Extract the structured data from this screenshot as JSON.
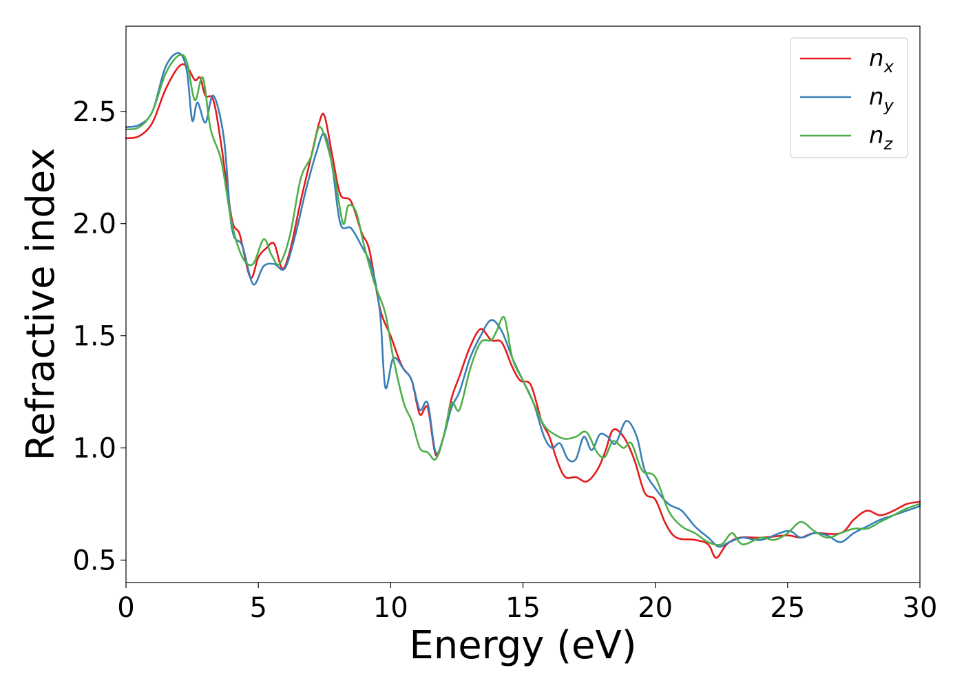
{
  "chart_data": {
    "type": "line",
    "title": "",
    "xlabel": "Energy (eV)",
    "ylabel": "Refractive index",
    "xlim": [
      0,
      30
    ],
    "ylim": [
      0.4,
      2.88
    ],
    "xticks": [
      0,
      5,
      10,
      15,
      20,
      25,
      30
    ],
    "yticks": [
      0.5,
      1.0,
      1.5,
      2.0,
      2.5
    ],
    "xtick_labels": [
      "0",
      "5",
      "10",
      "15",
      "20",
      "25",
      "30"
    ],
    "ytick_labels": [
      "0.5",
      "1.0",
      "1.5",
      "2.0",
      "2.5"
    ],
    "grid": false,
    "legend_position": "top-right",
    "series": [
      {
        "name": "n_x",
        "label_base": "n",
        "label_sub": "x",
        "color": "#e41a1c",
        "points": [
          [
            0,
            2.38
          ],
          [
            0.5,
            2.39
          ],
          [
            1.0,
            2.45
          ],
          [
            1.5,
            2.6
          ],
          [
            2.0,
            2.7
          ],
          [
            2.3,
            2.7
          ],
          [
            2.6,
            2.64
          ],
          [
            2.8,
            2.65
          ],
          [
            3.0,
            2.57
          ],
          [
            3.3,
            2.55
          ],
          [
            3.6,
            2.35
          ],
          [
            4.0,
            2.02
          ],
          [
            4.3,
            1.95
          ],
          [
            4.7,
            1.76
          ],
          [
            5.0,
            1.85
          ],
          [
            5.3,
            1.89
          ],
          [
            5.6,
            1.91
          ],
          [
            5.9,
            1.8
          ],
          [
            6.2,
            1.88
          ],
          [
            6.6,
            2.1
          ],
          [
            7.0,
            2.3
          ],
          [
            7.3,
            2.45
          ],
          [
            7.5,
            2.48
          ],
          [
            7.8,
            2.3
          ],
          [
            8.1,
            2.13
          ],
          [
            8.5,
            2.1
          ],
          [
            8.9,
            1.96
          ],
          [
            9.2,
            1.88
          ],
          [
            9.6,
            1.62
          ],
          [
            10.0,
            1.5
          ],
          [
            10.3,
            1.4
          ],
          [
            10.5,
            1.35
          ],
          [
            10.8,
            1.3
          ],
          [
            11.1,
            1.15
          ],
          [
            11.4,
            1.18
          ],
          [
            11.7,
            0.97
          ],
          [
            12.0,
            1.05
          ],
          [
            12.3,
            1.22
          ],
          [
            12.6,
            1.32
          ],
          [
            13.0,
            1.45
          ],
          [
            13.4,
            1.53
          ],
          [
            13.8,
            1.48
          ],
          [
            14.2,
            1.47
          ],
          [
            14.6,
            1.36
          ],
          [
            14.9,
            1.3
          ],
          [
            15.3,
            1.28
          ],
          [
            15.7,
            1.12
          ],
          [
            16.0,
            1.05
          ],
          [
            16.3,
            0.94
          ],
          [
            16.6,
            0.87
          ],
          [
            17.0,
            0.87
          ],
          [
            17.4,
            0.85
          ],
          [
            17.8,
            0.9
          ],
          [
            18.1,
            0.98
          ],
          [
            18.4,
            1.08
          ],
          [
            18.8,
            1.05
          ],
          [
            19.2,
            0.95
          ],
          [
            19.6,
            0.8
          ],
          [
            20.0,
            0.77
          ],
          [
            20.4,
            0.66
          ],
          [
            20.8,
            0.6
          ],
          [
            21.5,
            0.59
          ],
          [
            22.0,
            0.57
          ],
          [
            22.3,
            0.51
          ],
          [
            22.7,
            0.57
          ],
          [
            23.2,
            0.6
          ],
          [
            24.0,
            0.6
          ],
          [
            25.0,
            0.61
          ],
          [
            25.5,
            0.6
          ],
          [
            26.0,
            0.62
          ],
          [
            27.0,
            0.62
          ],
          [
            27.5,
            0.68
          ],
          [
            28.0,
            0.72
          ],
          [
            28.5,
            0.7
          ],
          [
            29.0,
            0.72
          ],
          [
            29.5,
            0.75
          ],
          [
            30,
            0.76
          ]
        ]
      },
      {
        "name": "n_y",
        "label_base": "n",
        "label_sub": "y",
        "color": "#377eb8",
        "points": [
          [
            0,
            2.43
          ],
          [
            0.5,
            2.44
          ],
          [
            1.0,
            2.5
          ],
          [
            1.5,
            2.7
          ],
          [
            2.0,
            2.76
          ],
          [
            2.3,
            2.68
          ],
          [
            2.5,
            2.46
          ],
          [
            2.7,
            2.54
          ],
          [
            3.0,
            2.45
          ],
          [
            3.3,
            2.57
          ],
          [
            3.7,
            2.38
          ],
          [
            4.0,
            1.98
          ],
          [
            4.4,
            1.9
          ],
          [
            4.8,
            1.73
          ],
          [
            5.2,
            1.81
          ],
          [
            5.6,
            1.82
          ],
          [
            6.0,
            1.8
          ],
          [
            6.4,
            1.95
          ],
          [
            6.8,
            2.15
          ],
          [
            7.2,
            2.32
          ],
          [
            7.5,
            2.4
          ],
          [
            7.8,
            2.25
          ],
          [
            8.1,
            2.0
          ],
          [
            8.5,
            1.98
          ],
          [
            8.9,
            1.9
          ],
          [
            9.3,
            1.8
          ],
          [
            9.6,
            1.6
          ],
          [
            9.8,
            1.27
          ],
          [
            10.1,
            1.4
          ],
          [
            10.5,
            1.35
          ],
          [
            10.8,
            1.3
          ],
          [
            11.1,
            1.17
          ],
          [
            11.4,
            1.2
          ],
          [
            11.7,
            0.98
          ],
          [
            12.0,
            1.05
          ],
          [
            12.3,
            1.18
          ],
          [
            12.6,
            1.25
          ],
          [
            13.0,
            1.4
          ],
          [
            13.4,
            1.5
          ],
          [
            13.8,
            1.57
          ],
          [
            14.2,
            1.52
          ],
          [
            14.6,
            1.4
          ],
          [
            15.0,
            1.3
          ],
          [
            15.4,
            1.2
          ],
          [
            15.8,
            1.05
          ],
          [
            16.1,
            1.0
          ],
          [
            16.4,
            1.02
          ],
          [
            16.7,
            0.95
          ],
          [
            17.0,
            0.95
          ],
          [
            17.3,
            1.05
          ],
          [
            17.6,
            0.99
          ],
          [
            17.9,
            1.06
          ],
          [
            18.2,
            1.05
          ],
          [
            18.5,
            1.02
          ],
          [
            18.9,
            1.12
          ],
          [
            19.3,
            1.05
          ],
          [
            19.6,
            0.9
          ],
          [
            20.0,
            0.82
          ],
          [
            20.5,
            0.75
          ],
          [
            21.0,
            0.72
          ],
          [
            21.5,
            0.65
          ],
          [
            22.0,
            0.6
          ],
          [
            22.4,
            0.56
          ],
          [
            22.8,
            0.58
          ],
          [
            23.3,
            0.6
          ],
          [
            24.0,
            0.59
          ],
          [
            25.0,
            0.63
          ],
          [
            25.5,
            0.6
          ],
          [
            26.0,
            0.62
          ],
          [
            26.5,
            0.61
          ],
          [
            27.0,
            0.58
          ],
          [
            27.5,
            0.62
          ],
          [
            28.0,
            0.65
          ],
          [
            28.5,
            0.68
          ],
          [
            29.0,
            0.7
          ],
          [
            29.5,
            0.72
          ],
          [
            30,
            0.74
          ]
        ]
      },
      {
        "name": "n_z",
        "label_base": "n",
        "label_sub": "z",
        "color": "#4daf4a",
        "points": [
          [
            0,
            2.42
          ],
          [
            0.5,
            2.43
          ],
          [
            1.0,
            2.5
          ],
          [
            1.5,
            2.67
          ],
          [
            2.0,
            2.75
          ],
          [
            2.3,
            2.72
          ],
          [
            2.6,
            2.55
          ],
          [
            2.9,
            2.65
          ],
          [
            3.2,
            2.42
          ],
          [
            3.6,
            2.28
          ],
          [
            4.0,
            2.0
          ],
          [
            4.4,
            1.85
          ],
          [
            4.8,
            1.82
          ],
          [
            5.2,
            1.93
          ],
          [
            5.5,
            1.86
          ],
          [
            5.8,
            1.82
          ],
          [
            6.2,
            1.95
          ],
          [
            6.6,
            2.2
          ],
          [
            7.0,
            2.3
          ],
          [
            7.3,
            2.43
          ],
          [
            7.6,
            2.35
          ],
          [
            7.9,
            2.2
          ],
          [
            8.2,
            2.0
          ],
          [
            8.4,
            2.08
          ],
          [
            8.7,
            2.05
          ],
          [
            9.0,
            1.9
          ],
          [
            9.4,
            1.73
          ],
          [
            9.8,
            1.6
          ],
          [
            10.1,
            1.4
          ],
          [
            10.5,
            1.2
          ],
          [
            10.8,
            1.12
          ],
          [
            11.1,
            1.0
          ],
          [
            11.4,
            0.98
          ],
          [
            11.7,
            0.95
          ],
          [
            12.0,
            1.05
          ],
          [
            12.3,
            1.2
          ],
          [
            12.6,
            1.17
          ],
          [
            13.0,
            1.35
          ],
          [
            13.4,
            1.47
          ],
          [
            13.8,
            1.48
          ],
          [
            14.0,
            1.52
          ],
          [
            14.3,
            1.58
          ],
          [
            14.6,
            1.4
          ],
          [
            15.0,
            1.3
          ],
          [
            15.4,
            1.2
          ],
          [
            15.8,
            1.1
          ],
          [
            16.2,
            1.06
          ],
          [
            16.6,
            1.04
          ],
          [
            17.0,
            1.05
          ],
          [
            17.4,
            1.07
          ],
          [
            17.8,
            0.98
          ],
          [
            18.1,
            0.96
          ],
          [
            18.4,
            1.03
          ],
          [
            18.8,
            1.0
          ],
          [
            19.1,
            1.02
          ],
          [
            19.5,
            0.9
          ],
          [
            20.0,
            0.87
          ],
          [
            20.5,
            0.72
          ],
          [
            21.0,
            0.65
          ],
          [
            21.5,
            0.62
          ],
          [
            22.0,
            0.58
          ],
          [
            22.5,
            0.57
          ],
          [
            22.9,
            0.62
          ],
          [
            23.3,
            0.57
          ],
          [
            24.0,
            0.6
          ],
          [
            24.5,
            0.59
          ],
          [
            25.0,
            0.62
          ],
          [
            25.5,
            0.67
          ],
          [
            26.0,
            0.63
          ],
          [
            26.5,
            0.6
          ],
          [
            27.0,
            0.62
          ],
          [
            27.5,
            0.64
          ],
          [
            28.0,
            0.64
          ],
          [
            28.5,
            0.67
          ],
          [
            29.0,
            0.7
          ],
          [
            29.5,
            0.73
          ],
          [
            30,
            0.75
          ]
        ]
      }
    ]
  }
}
